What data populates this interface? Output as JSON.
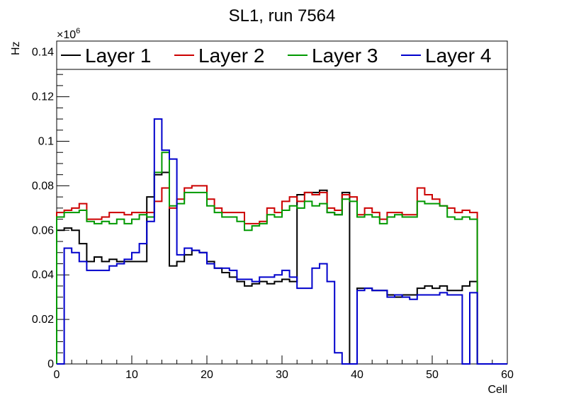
{
  "chart_data": {
    "type": "line",
    "title": "SL1, run 7564",
    "xlabel": "Cell",
    "ylabel": "Hz",
    "exponent_label": "×10",
    "exponent_power": "6",
    "xlim": [
      0,
      60
    ],
    "ylim": [
      0,
      0.145
    ],
    "xticks": [
      0,
      10,
      20,
      30,
      40,
      50,
      60
    ],
    "yticks": [
      0,
      0.02,
      0.04,
      0.06,
      0.08,
      0.1,
      0.12,
      0.14
    ],
    "ytick_labels": [
      "0",
      "0.02",
      "0.04",
      "0.06",
      "0.08",
      "0.1",
      "0.12",
      "0.14"
    ],
    "grid": false,
    "legend_position": "top",
    "series": [
      {
        "name": "Layer 1",
        "color": "#000000",
        "values": [
          0.06,
          0.061,
          0.06,
          0.054,
          0.046,
          0.048,
          0.046,
          0.047,
          0.046,
          0.046,
          0.046,
          0.046,
          0.075,
          0.085,
          0.086,
          0.044,
          0.046,
          0.049,
          0.051,
          0.05,
          0.046,
          0.043,
          0.041,
          0.039,
          0.037,
          0.035,
          0.036,
          0.037,
          0.036,
          0.037,
          0.038,
          0.037,
          0.076,
          0.077,
          0.077,
          0.078,
          0.068,
          0.067,
          0.077,
          0.0,
          0.034,
          0.034,
          0.033,
          0.033,
          0.031,
          0.03,
          0.031,
          0.031,
          0.034,
          0.035,
          0.034,
          0.035,
          0.033,
          0.033,
          0.035,
          0.037
        ]
      },
      {
        "name": "Layer 2",
        "color": "#cc0000",
        "values": [
          0.068,
          0.069,
          0.07,
          0.072,
          0.065,
          0.065,
          0.066,
          0.068,
          0.068,
          0.067,
          0.068,
          0.068,
          0.068,
          0.073,
          0.079,
          0.07,
          0.074,
          0.079,
          0.08,
          0.08,
          0.074,
          0.07,
          0.068,
          0.068,
          0.068,
          0.063,
          0.063,
          0.064,
          0.07,
          0.068,
          0.073,
          0.075,
          0.073,
          0.077,
          0.076,
          0.077,
          0.07,
          0.069,
          0.076,
          0.075,
          0.067,
          0.07,
          0.068,
          0.065,
          0.068,
          0.068,
          0.067,
          0.067,
          0.079,
          0.076,
          0.074,
          0.071,
          0.07,
          0.068,
          0.069,
          0.068
        ]
      },
      {
        "name": "Layer 3",
        "color": "#009900",
        "values": [
          0.066,
          0.068,
          0.068,
          0.069,
          0.064,
          0.063,
          0.064,
          0.063,
          0.065,
          0.063,
          0.065,
          0.067,
          0.066,
          0.086,
          0.095,
          0.071,
          0.072,
          0.077,
          0.077,
          0.077,
          0.071,
          0.068,
          0.066,
          0.066,
          0.064,
          0.06,
          0.062,
          0.063,
          0.067,
          0.066,
          0.069,
          0.071,
          0.07,
          0.073,
          0.071,
          0.072,
          0.068,
          0.067,
          0.074,
          0.073,
          0.066,
          0.067,
          0.066,
          0.063,
          0.066,
          0.067,
          0.066,
          0.066,
          0.073,
          0.072,
          0.072,
          0.071,
          0.066,
          0.065,
          0.066,
          0.065
        ]
      },
      {
        "name": "Layer 4",
        "color": "#0000cc",
        "values": [
          0.0,
          0.052,
          0.05,
          0.046,
          0.042,
          0.042,
          0.042,
          0.044,
          0.045,
          0.047,
          0.05,
          0.054,
          0.064,
          0.11,
          0.096,
          0.092,
          0.049,
          0.052,
          0.051,
          0.05,
          0.045,
          0.043,
          0.043,
          0.042,
          0.038,
          0.038,
          0.037,
          0.039,
          0.039,
          0.04,
          0.042,
          0.039,
          0.034,
          0.034,
          0.043,
          0.045,
          0.037,
          0.005,
          0.0,
          0.0,
          0.033,
          0.034,
          0.033,
          0.033,
          0.03,
          0.031,
          0.03,
          0.029,
          0.031,
          0.031,
          0.031,
          0.032,
          0.031,
          0.031,
          0.0,
          0.032
        ]
      }
    ]
  }
}
